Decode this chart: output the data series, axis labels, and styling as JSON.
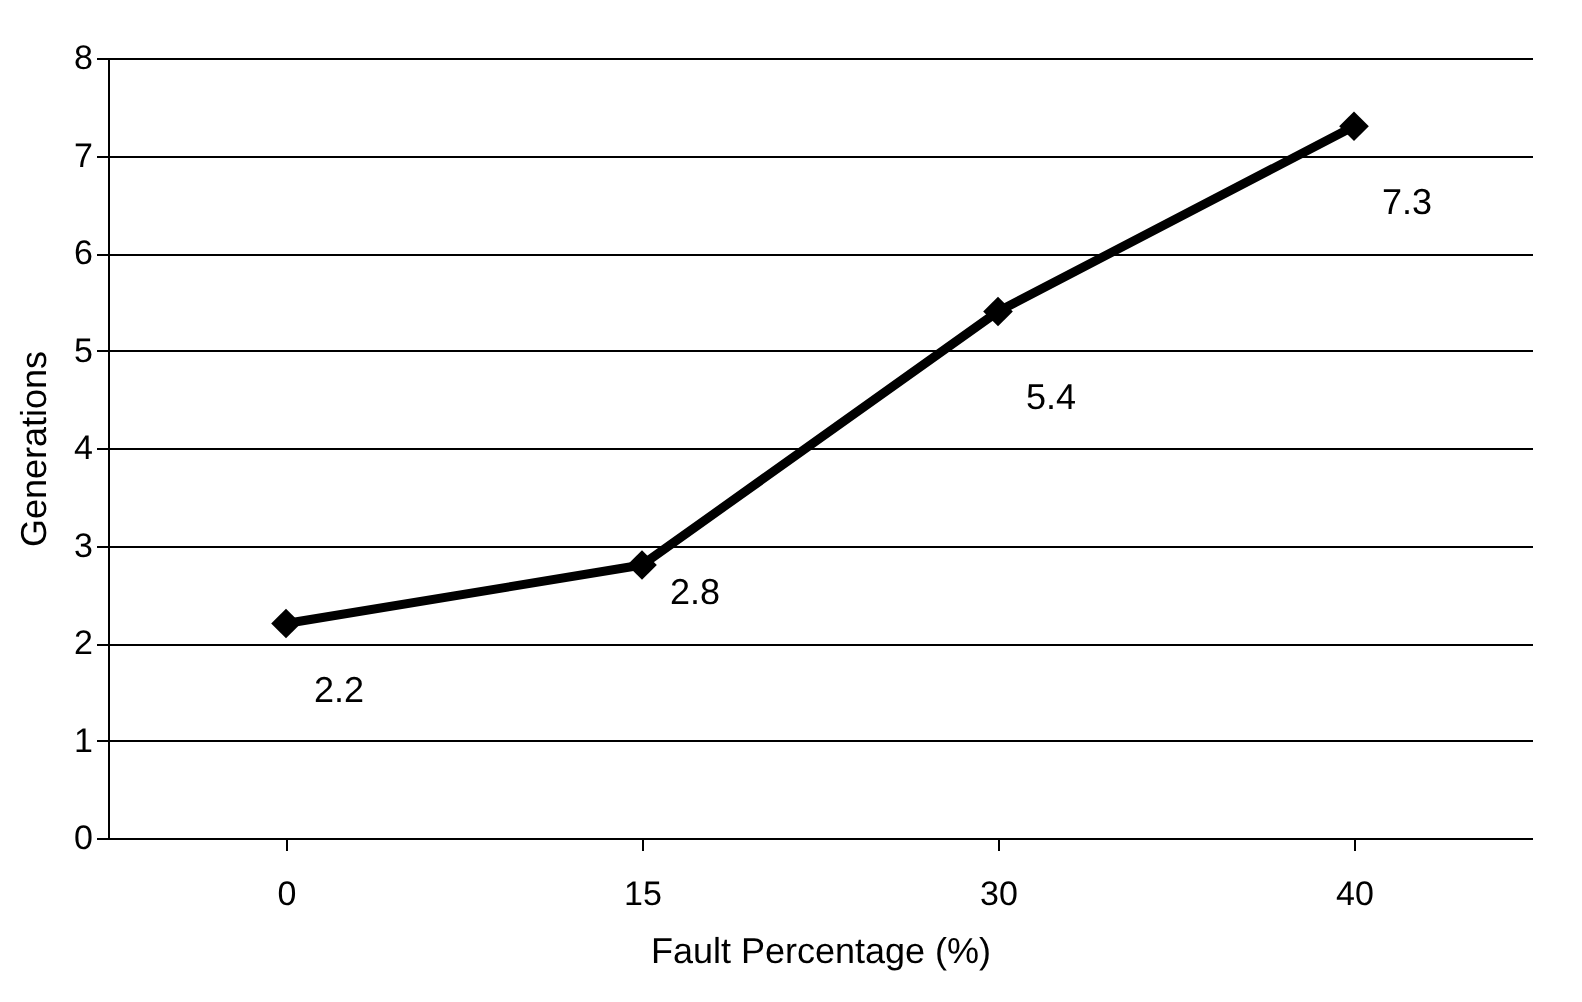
{
  "chart_data": {
    "type": "line",
    "xlabel": "Fault Percentage (%)",
    "ylabel": "Generations",
    "categories": [
      "0",
      "15",
      "30",
      "40"
    ],
    "series": [
      {
        "color": "#000000",
        "values": [
          2.2,
          2.8,
          5.4,
          7.3
        ]
      }
    ],
    "ylim": [
      0,
      8
    ],
    "yticks": [
      0,
      1,
      2,
      3,
      4,
      5,
      6,
      7,
      8
    ],
    "grid": "y",
    "legend": false,
    "marker": "diamond",
    "line_style": "solid",
    "data_labels": true
  }
}
